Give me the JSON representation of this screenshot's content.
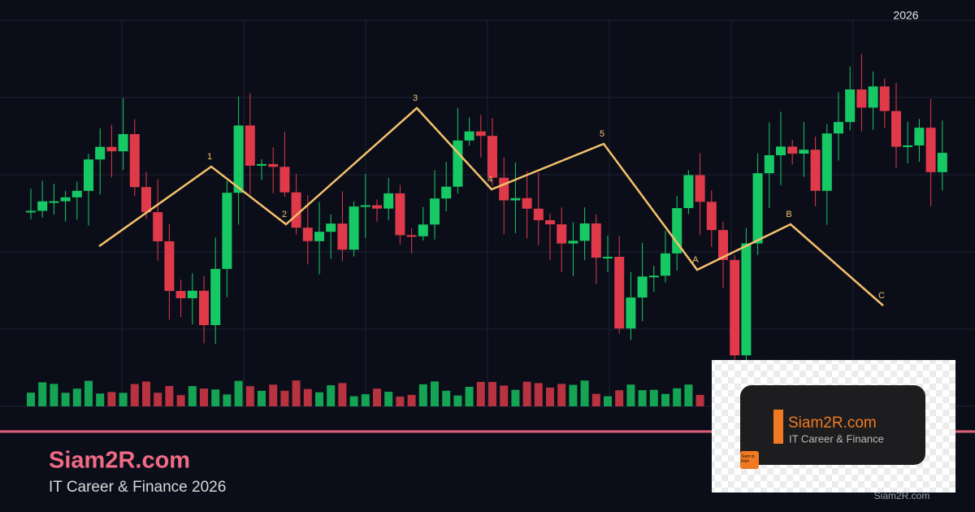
{
  "header": {
    "year": "2026"
  },
  "waves": {
    "labels": [
      "1",
      "2",
      "3",
      "4",
      "5",
      "A",
      "B",
      "C"
    ]
  },
  "brand": {
    "name": "Siam2R.com",
    "tagline": "IT Career & Finance 2026"
  },
  "logo": {
    "name": "Siam2R.com",
    "tagline": "IT Career & Finance",
    "icon_text": "Siam to Rich"
  },
  "watermark": "Siam2R.com"
}
